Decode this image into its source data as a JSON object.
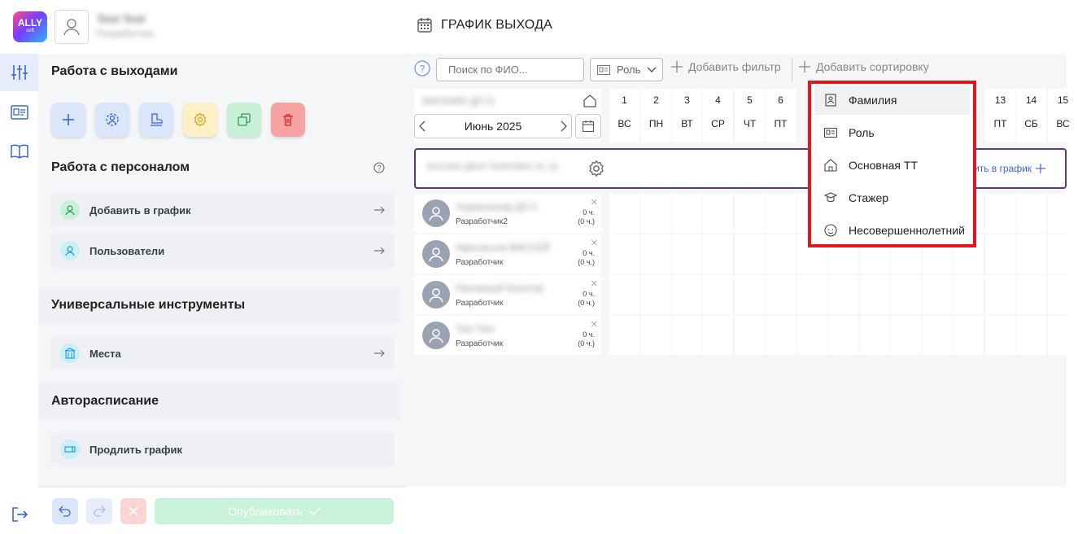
{
  "header": {
    "logo_text": "ALLY",
    "logo_sub": "soft",
    "user_name": "Test Test",
    "user_role": "Разработчик",
    "page_title": "ГРАФИК ВЫХОДА"
  },
  "sidebar": {
    "section_exits": "Работа с выходами",
    "section_staff": "Работа с персоналом",
    "staff_items": [
      {
        "label": "Добавить в график"
      },
      {
        "label": "Пользователи"
      }
    ],
    "section_tools": "Универсальные инструменты",
    "tools_items": [
      {
        "label": "Места"
      }
    ],
    "section_auto": "Авторасписание",
    "auto_items": [
      {
        "label": "Продлить график"
      }
    ],
    "publish_label": "Опубликовать"
  },
  "toolbar": {
    "search_placeholder": "Поиск по ФИО...",
    "role_filter_label": "Роль",
    "add_filter_label": "Добавить фильтр",
    "add_sort_label": "Добавить сортировку"
  },
  "schedule": {
    "store_name": "МАГАЗИН ДЛ О.",
    "month_label": "Июнь 2025",
    "days_left": [
      {
        "n": "1",
        "w": "ВС"
      },
      {
        "n": "2",
        "w": "ПН"
      },
      {
        "n": "3",
        "w": "ВТ"
      },
      {
        "n": "4",
        "w": "СР"
      },
      {
        "n": "5",
        "w": "ЧТ"
      },
      {
        "n": "6",
        "w": "ПТ"
      }
    ],
    "days_right": [
      {
        "n": "13",
        "w": "ПТ"
      },
      {
        "n": "14",
        "w": "СБ"
      },
      {
        "n": "15",
        "w": "ВС"
      }
    ],
    "group_name": "МОСКВА ДВОР ПОКРОВКА 26, 18",
    "group_add_label": "ить в график",
    "employees": [
      {
        "name": "Ходоронкоф ДЗ С.",
        "role": "Разработчик2",
        "hours": "0 ч.",
        "hours_sub": "(0 ч.)"
      },
      {
        "name": "Афонасьев ВАССЕЙ",
        "role": "Разработчик",
        "hours": "0 ч.",
        "hours_sub": "(0 ч.)"
      },
      {
        "name": "Паломный Коонтар",
        "role": "Разработчик",
        "hours": "0 ч.",
        "hours_sub": "(0 ч.)"
      },
      {
        "name": "Test Test",
        "role": "Разработчик",
        "hours": "0 ч.",
        "hours_sub": "(0 ч.)"
      }
    ]
  },
  "sort_dropdown": {
    "items": [
      {
        "label": "Фамилия",
        "icon": "badge-icon"
      },
      {
        "label": "Роль",
        "icon": "id-card-icon"
      },
      {
        "label": "Основная ТТ",
        "icon": "home-icon"
      },
      {
        "label": "Стажер",
        "icon": "graduation-icon"
      },
      {
        "label": "Несовершеннолетний",
        "icon": "child-face-icon"
      }
    ]
  },
  "colors": {
    "accent_blue": "#3b66d6",
    "highlight_red": "#e8141c",
    "group_border": "#5b3b6e"
  }
}
